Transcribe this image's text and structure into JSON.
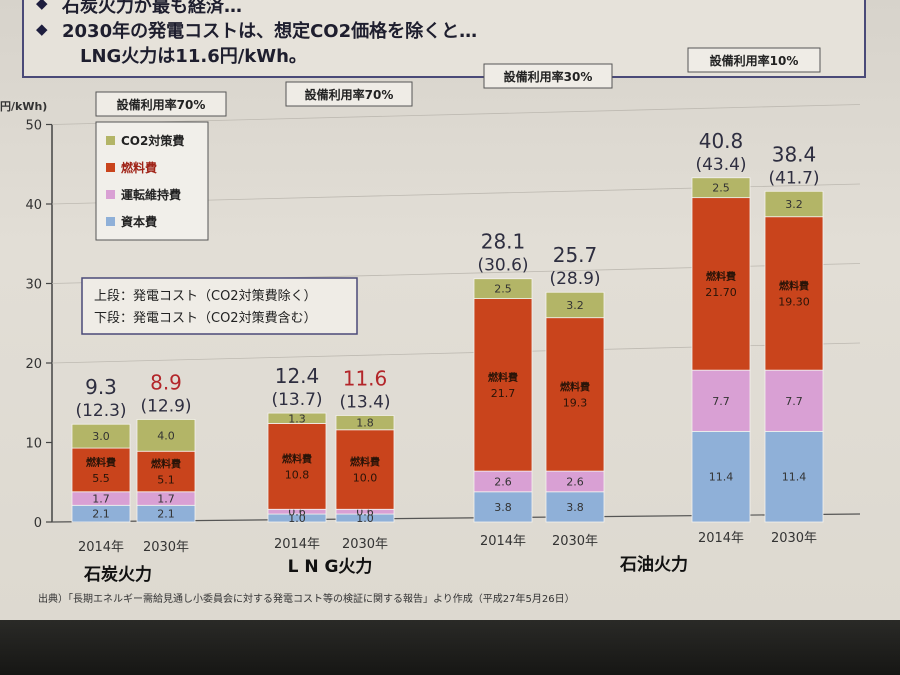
{
  "header": {
    "lines": [
      "石炭火力が最も経済…",
      "2030年の発電コストは、想定CO2価格を除くと…",
      "LNG火力は11.6円/kWh。"
    ]
  },
  "source_note": "出典）「長期エネルギー需給見通し小委員会に対する発電コスト等の検証に関する報告」より作成（平成27年5月26日）",
  "chart_data": {
    "type": "bar",
    "stacked": true,
    "ylabel": "円/kWh)",
    "ylim": [
      0,
      50
    ],
    "yticks": [
      0,
      10,
      20,
      30,
      40,
      50
    ],
    "legend": {
      "placement": "top-left",
      "entries": [
        "CO2対策費",
        "燃料費",
        "運転維持費",
        "資本費"
      ]
    },
    "note_box": [
      "上段：発電コスト（CO2対策費除く）",
      "下段：発電コスト（CO2対策費含む）"
    ],
    "series": [
      {
        "name": "資本費",
        "color": "#8fb0d8"
      },
      {
        "name": "運転維持費",
        "color": "#d9a0d4"
      },
      {
        "name": "燃料費",
        "color": "#c9441c"
      },
      {
        "name": "CO2対策費",
        "color": "#b3b567"
      }
    ],
    "groups": [
      {
        "label": "石炭火力",
        "utilization": "設備利用率70%",
        "bars": [
          {
            "year": "2014年",
            "values": [
              2.1,
              1.7,
              5.5,
              3.0
            ],
            "labels": [
              "2.1",
              "1.7",
              "5.5",
              "3.0"
            ],
            "top": "9.3",
            "sub": "(12.3)",
            "top_red": false
          },
          {
            "year": "2030年",
            "values": [
              2.1,
              1.7,
              5.1,
              4.0
            ],
            "labels": [
              "2.1",
              "1.7",
              "5.1",
              "4.0"
            ],
            "top": "8.9",
            "sub": "(12.9)",
            "top_red": true
          }
        ]
      },
      {
        "label": "L N G火力",
        "utilization": "設備利用率70%",
        "bars": [
          {
            "year": "2014年",
            "values": [
              1.0,
              0.6,
              10.8,
              1.3
            ],
            "labels": [
              "1.0",
              "0.6",
              "10.8",
              "1.3"
            ],
            "top": "12.4",
            "sub": "(13.7)",
            "top_red": false
          },
          {
            "year": "2030年",
            "values": [
              1.0,
              0.6,
              10.0,
              1.8
            ],
            "labels": [
              "1.0",
              "0.6",
              "10.0",
              "1.8"
            ],
            "top": "11.6",
            "sub": "(13.4)",
            "top_red": true
          }
        ]
      },
      {
        "label": "石油火力",
        "utilization": "設備利用率30%",
        "bars": [
          {
            "year": "2014年",
            "values": [
              3.8,
              2.6,
              21.7,
              2.5
            ],
            "labels": [
              "3.8",
              "2.6",
              "21.7",
              "2.5"
            ],
            "top": "28.1",
            "sub": "(30.6)",
            "top_red": false
          },
          {
            "year": "2030年",
            "values": [
              3.8,
              2.6,
              19.3,
              3.2
            ],
            "labels": [
              "3.8",
              "2.6",
              "19.3",
              "3.2"
            ],
            "top": "25.7",
            "sub": "(28.9)",
            "top_red": false
          }
        ]
      },
      {
        "label": "",
        "utilization": "設備利用率10%",
        "bars": [
          {
            "year": "2014年",
            "values": [
              11.4,
              7.7,
              21.7,
              2.5
            ],
            "labels": [
              "11.4",
              "7.7",
              "21.70",
              "2.5"
            ],
            "top": "40.8",
            "sub": "(43.4)",
            "top_red": false
          },
          {
            "year": "2030年",
            "values": [
              11.4,
              7.7,
              19.3,
              3.2
            ],
            "labels": [
              "11.4",
              "7.7",
              "19.30",
              "3.2"
            ],
            "top": "38.4",
            "sub": "(41.7)",
            "top_red": false
          }
        ]
      }
    ],
    "fuel_label": "燃料費"
  }
}
